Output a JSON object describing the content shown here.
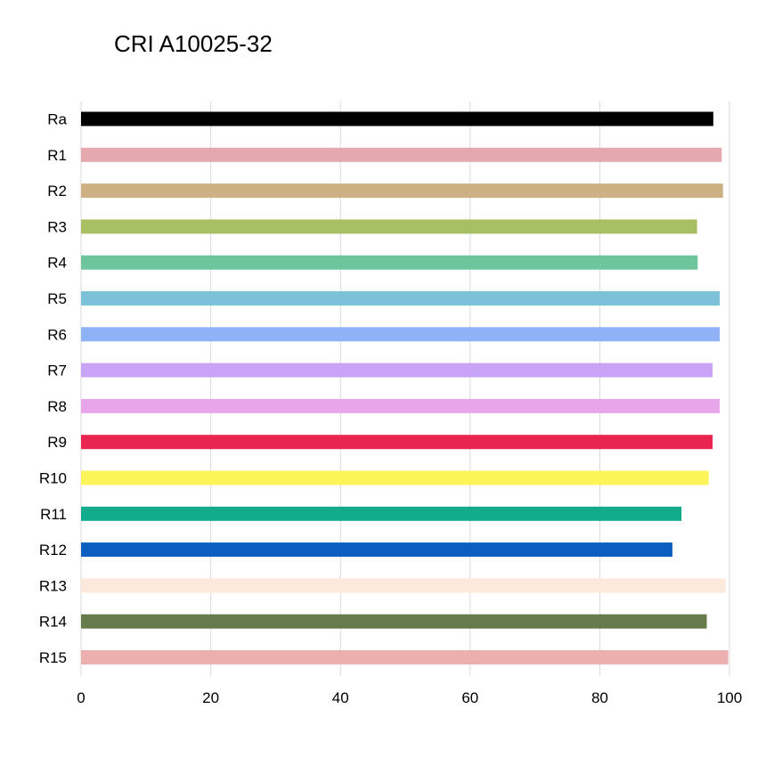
{
  "chart_data": {
    "type": "bar",
    "orientation": "horizontal",
    "title": "CRI A10025-32",
    "xlabel": "",
    "ylabel": "",
    "xlim": [
      0,
      100
    ],
    "x_ticks": [
      "0",
      "20",
      "40",
      "60",
      "80",
      "100"
    ],
    "grid": true,
    "categories": [
      "Ra",
      "R1",
      "R2",
      "R3",
      "R4",
      "R5",
      "R6",
      "R7",
      "R8",
      "R9",
      "R10",
      "R11",
      "R12",
      "R13",
      "R14",
      "R15"
    ],
    "values": [
      97.5,
      98.8,
      99.0,
      95.0,
      95.1,
      98.5,
      98.5,
      97.4,
      98.5,
      97.4,
      96.8,
      92.6,
      91.2,
      99.4,
      96.5,
      99.8
    ],
    "colors": [
      "#000000",
      "#e5a8ae",
      "#cdb185",
      "#a9bf63",
      "#6ec49b",
      "#7dc1d9",
      "#8fb1f5",
      "#c9a3f5",
      "#e8a6ea",
      "#ea2450",
      "#fdf45a",
      "#12ab8c",
      "#0b5fc0",
      "#fde8dc",
      "#667b4b",
      "#ebb0ae"
    ]
  }
}
